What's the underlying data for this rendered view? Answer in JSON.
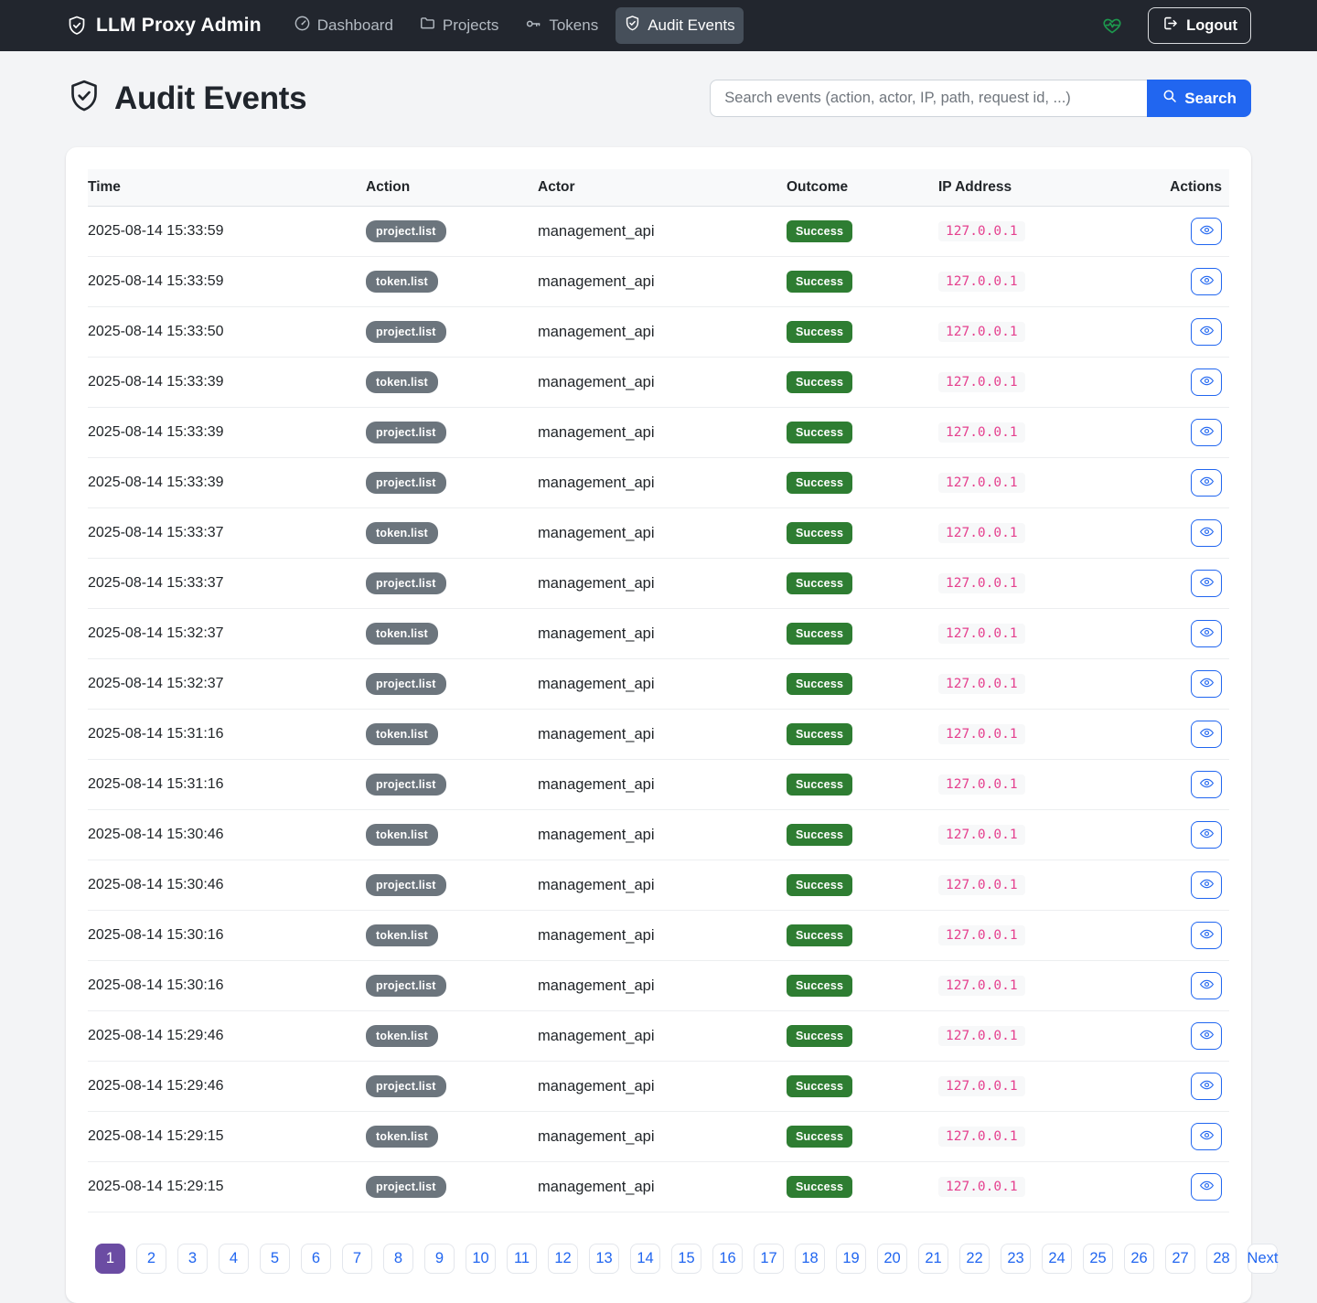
{
  "navbar": {
    "brand": "LLM Proxy Admin",
    "items": [
      {
        "label": "Dashboard",
        "icon": "gauge-icon",
        "active": false
      },
      {
        "label": "Projects",
        "icon": "folder-icon",
        "active": false
      },
      {
        "label": "Tokens",
        "icon": "key-icon",
        "active": false
      },
      {
        "label": "Audit Events",
        "icon": "shield-check-icon",
        "active": true
      }
    ],
    "health_icon": "heart-pulse-icon",
    "logout_label": "Logout"
  },
  "page": {
    "title": "Audit Events"
  },
  "search": {
    "placeholder": "Search events (action, actor, IP, path, request id, ...)",
    "button_label": "Search"
  },
  "table": {
    "columns": [
      "Time",
      "Action",
      "Actor",
      "Outcome",
      "IP Address",
      "Actions"
    ],
    "rows": [
      {
        "time": "2025-08-14 15:33:59",
        "action": "project.list",
        "actor": "management_api",
        "outcome": "Success",
        "ip": "127.0.0.1"
      },
      {
        "time": "2025-08-14 15:33:59",
        "action": "token.list",
        "actor": "management_api",
        "outcome": "Success",
        "ip": "127.0.0.1"
      },
      {
        "time": "2025-08-14 15:33:50",
        "action": "project.list",
        "actor": "management_api",
        "outcome": "Success",
        "ip": "127.0.0.1"
      },
      {
        "time": "2025-08-14 15:33:39",
        "action": "token.list",
        "actor": "management_api",
        "outcome": "Success",
        "ip": "127.0.0.1"
      },
      {
        "time": "2025-08-14 15:33:39",
        "action": "project.list",
        "actor": "management_api",
        "outcome": "Success",
        "ip": "127.0.0.1"
      },
      {
        "time": "2025-08-14 15:33:39",
        "action": "project.list",
        "actor": "management_api",
        "outcome": "Success",
        "ip": "127.0.0.1"
      },
      {
        "time": "2025-08-14 15:33:37",
        "action": "token.list",
        "actor": "management_api",
        "outcome": "Success",
        "ip": "127.0.0.1"
      },
      {
        "time": "2025-08-14 15:33:37",
        "action": "project.list",
        "actor": "management_api",
        "outcome": "Success",
        "ip": "127.0.0.1"
      },
      {
        "time": "2025-08-14 15:32:37",
        "action": "token.list",
        "actor": "management_api",
        "outcome": "Success",
        "ip": "127.0.0.1"
      },
      {
        "time": "2025-08-14 15:32:37",
        "action": "project.list",
        "actor": "management_api",
        "outcome": "Success",
        "ip": "127.0.0.1"
      },
      {
        "time": "2025-08-14 15:31:16",
        "action": "token.list",
        "actor": "management_api",
        "outcome": "Success",
        "ip": "127.0.0.1"
      },
      {
        "time": "2025-08-14 15:31:16",
        "action": "project.list",
        "actor": "management_api",
        "outcome": "Success",
        "ip": "127.0.0.1"
      },
      {
        "time": "2025-08-14 15:30:46",
        "action": "token.list",
        "actor": "management_api",
        "outcome": "Success",
        "ip": "127.0.0.1"
      },
      {
        "time": "2025-08-14 15:30:46",
        "action": "project.list",
        "actor": "management_api",
        "outcome": "Success",
        "ip": "127.0.0.1"
      },
      {
        "time": "2025-08-14 15:30:16",
        "action": "token.list",
        "actor": "management_api",
        "outcome": "Success",
        "ip": "127.0.0.1"
      },
      {
        "time": "2025-08-14 15:30:16",
        "action": "project.list",
        "actor": "management_api",
        "outcome": "Success",
        "ip": "127.0.0.1"
      },
      {
        "time": "2025-08-14 15:29:46",
        "action": "token.list",
        "actor": "management_api",
        "outcome": "Success",
        "ip": "127.0.0.1"
      },
      {
        "time": "2025-08-14 15:29:46",
        "action": "project.list",
        "actor": "management_api",
        "outcome": "Success",
        "ip": "127.0.0.1"
      },
      {
        "time": "2025-08-14 15:29:15",
        "action": "token.list",
        "actor": "management_api",
        "outcome": "Success",
        "ip": "127.0.0.1"
      },
      {
        "time": "2025-08-14 15:29:15",
        "action": "project.list",
        "actor": "management_api",
        "outcome": "Success",
        "ip": "127.0.0.1"
      }
    ],
    "row_action_icon": "eye-icon"
  },
  "pagination": {
    "pages": [
      "1",
      "2",
      "3",
      "4",
      "5",
      "6",
      "7",
      "8",
      "9",
      "10",
      "11",
      "12",
      "13",
      "14",
      "15",
      "16",
      "17",
      "18",
      "19",
      "20",
      "21",
      "22",
      "23",
      "24",
      "25",
      "26",
      "27",
      "28"
    ],
    "active_page": "1",
    "next_label": "Next"
  },
  "colors": {
    "navbar_bg": "#22262e",
    "accent_blue": "#2166f0",
    "success_green": "#2e7d32",
    "badge_gray": "#6c757d",
    "ip_pink": "#e5418f",
    "active_page_purple": "#6b4ca3",
    "health_green": "#1d9a4e"
  }
}
